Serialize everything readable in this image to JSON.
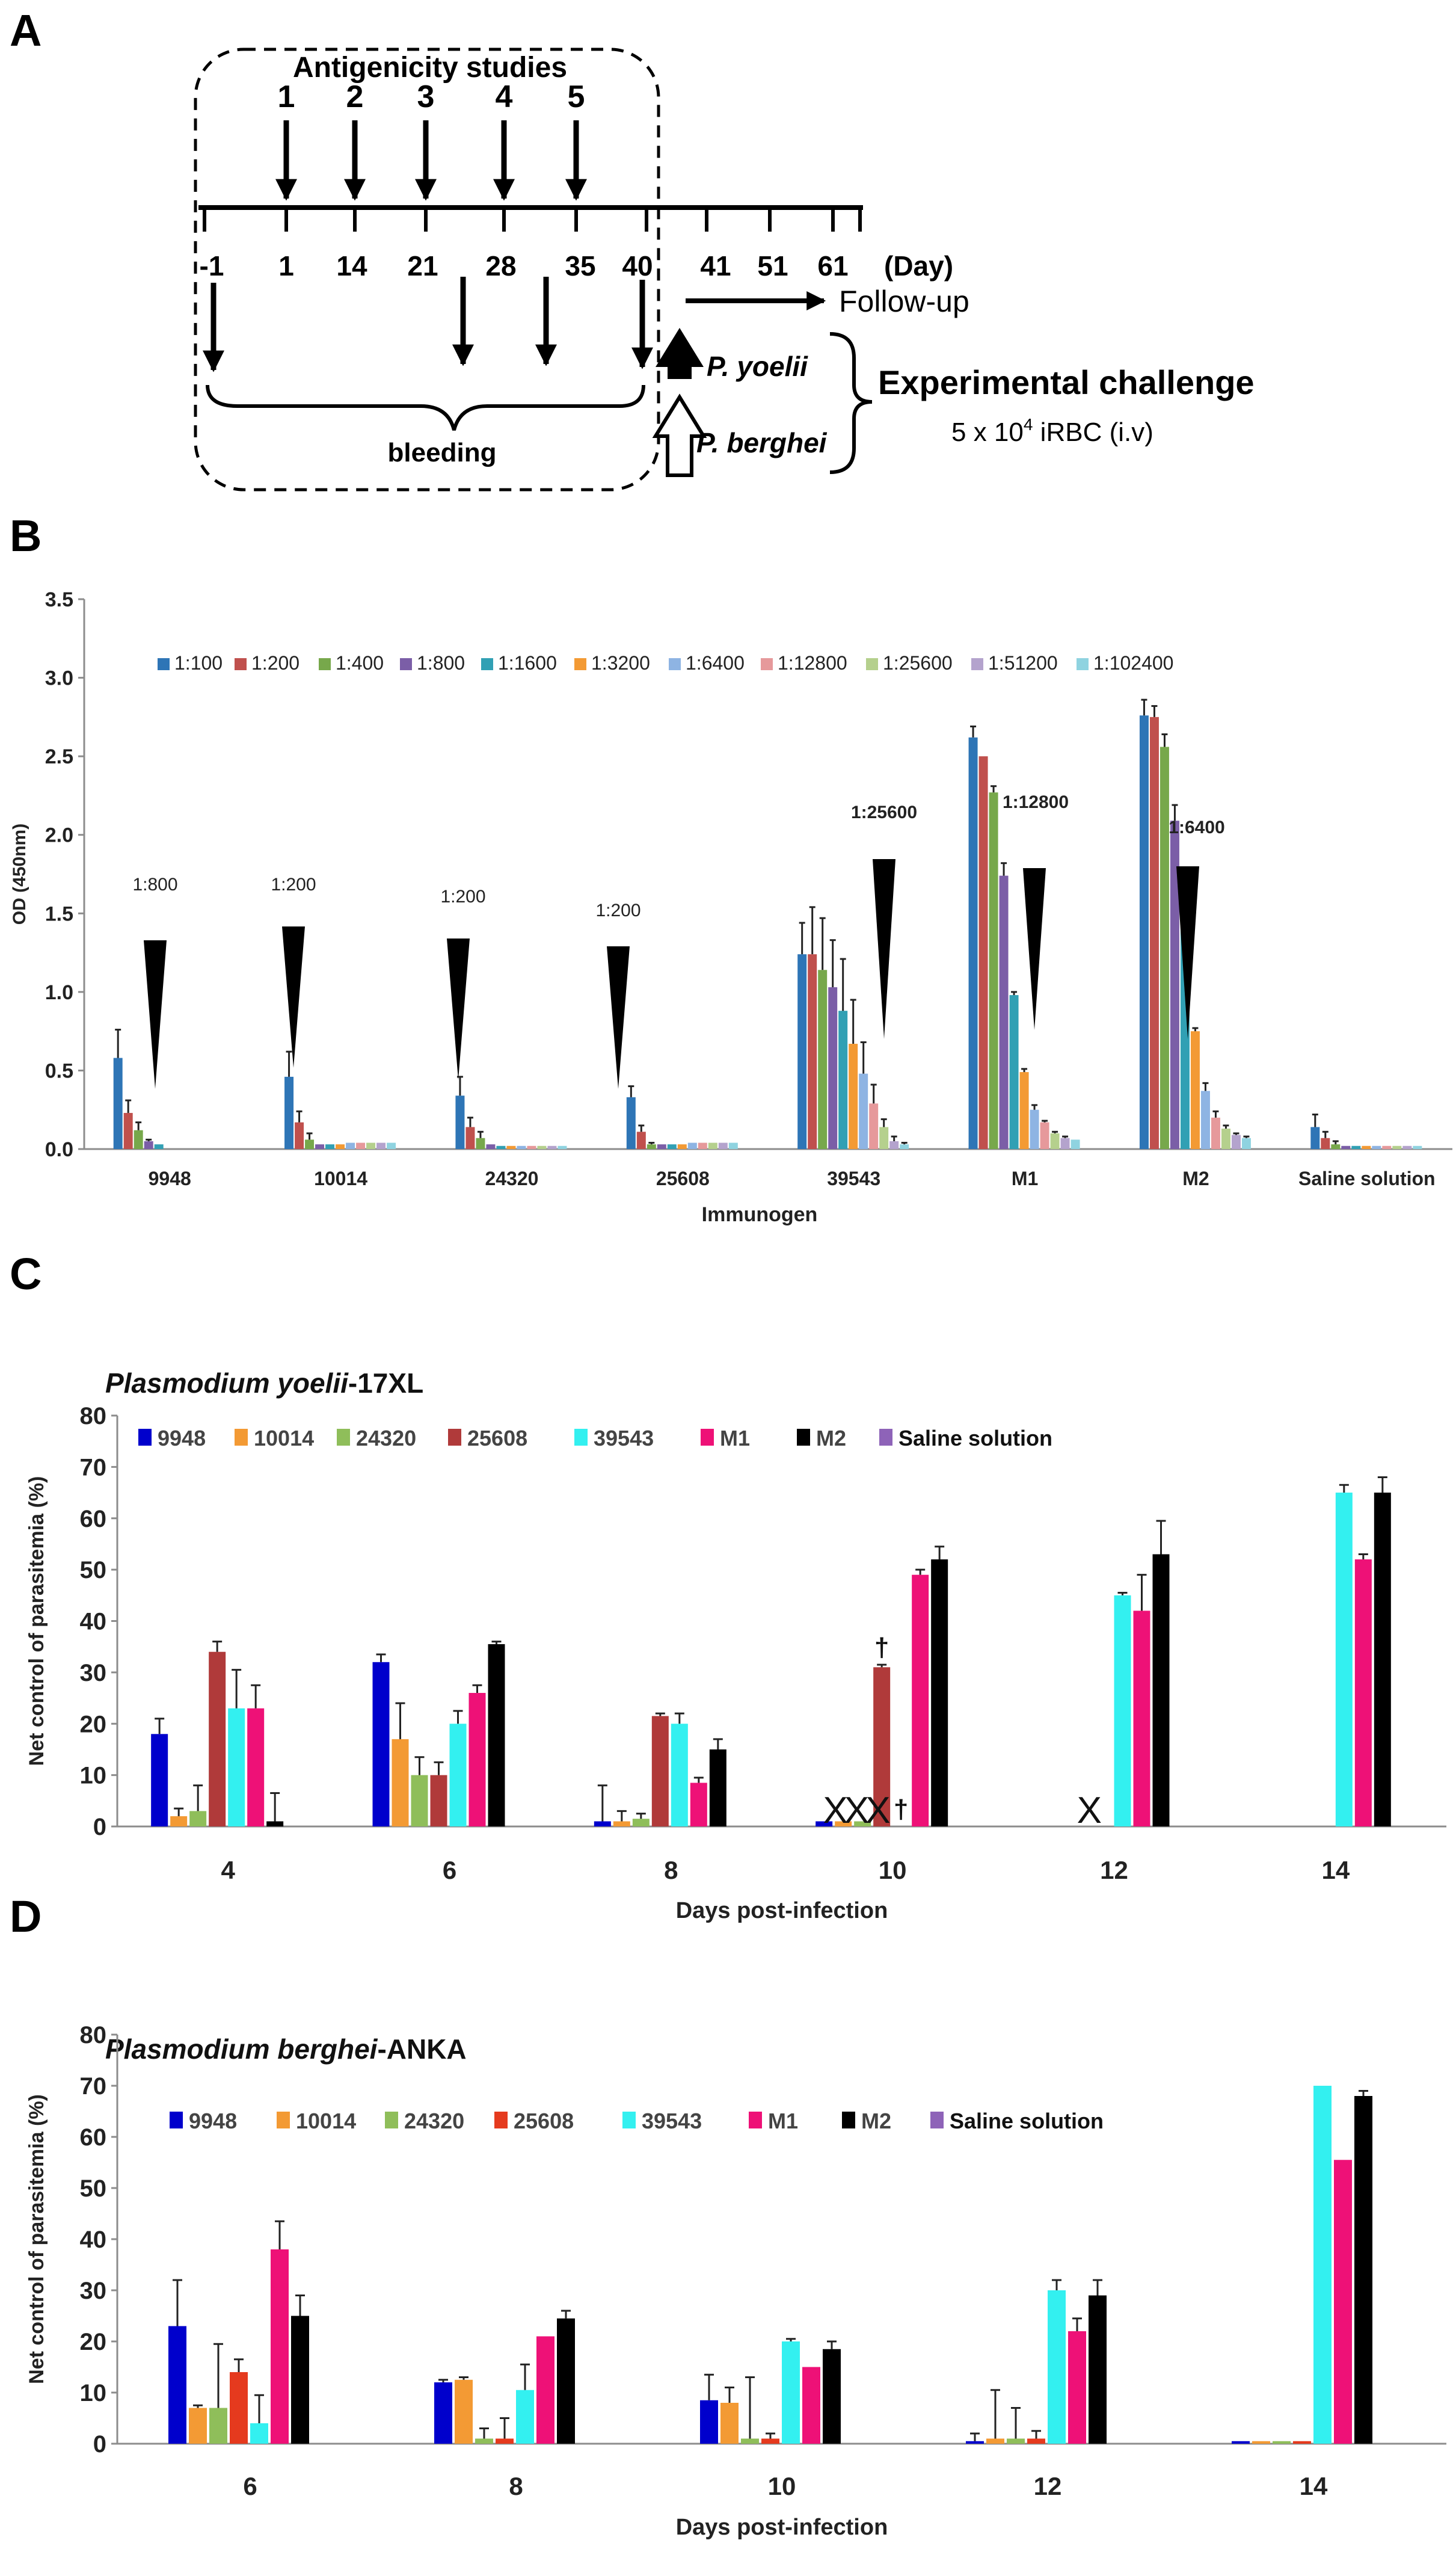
{
  "panel_labels": [
    "A",
    "B",
    "C",
    "D"
  ],
  "panelA": {
    "study_title": "Antigenicity studies",
    "doses": [
      "1",
      "2",
      "3",
      "4",
      "5"
    ],
    "days": [
      "-1",
      "1",
      "14",
      "21",
      "28",
      "35",
      "40",
      "41",
      "51",
      "61"
    ],
    "day_unit": "(Day)",
    "followup": "Follow-up",
    "bleeding": "bleeding",
    "species_1": "P. yoelii",
    "species_2": "P. berghei",
    "challenge_title": "Experimental challenge",
    "dose_prefix": "5 x 10",
    "dose_exp": "4",
    "dose_suffix": " iRBC (i.v)"
  },
  "chart_data": [
    {
      "type": "bar",
      "title": "",
      "xlabel": "Immunogen",
      "ylabel": "OD (450nm)",
      "ylim": [
        0,
        3.5
      ],
      "yticks": [
        "0.0",
        "0.5",
        "1.0",
        "1.5",
        "2.0",
        "2.5",
        "3.0",
        "3.5"
      ],
      "categories": [
        "9948",
        "10014",
        "24320",
        "25608",
        "39543",
        "M1",
        "M2",
        "Saline solution"
      ],
      "legend_position": "top",
      "series": [
        {
          "name": "1:100",
          "color": "#2e75b6",
          "values": [
            0.58,
            0.46,
            0.34,
            0.33,
            1.24,
            2.62,
            2.76,
            0.14
          ],
          "errors": [
            0.18,
            0.16,
            0.12,
            0.07,
            0.2,
            0.07,
            0.1,
            0.08
          ]
        },
        {
          "name": "1:200",
          "color": "#c0504d",
          "values": [
            0.23,
            0.17,
            0.14,
            0.11,
            1.24,
            2.5,
            2.75,
            0.07
          ],
          "errors": [
            0.08,
            0.07,
            0.06,
            0.04,
            0.3,
            0.0,
            0.07,
            0.04
          ]
        },
        {
          "name": "1:400",
          "color": "#77a84b",
          "values": [
            0.12,
            0.06,
            0.07,
            0.03,
            1.14,
            2.27,
            2.56,
            0.03
          ],
          "errors": [
            0.05,
            0.04,
            0.04,
            0.01,
            0.33,
            0.04,
            0.08,
            0.02
          ]
        },
        {
          "name": "1:800",
          "color": "#7b5ea7",
          "values": [
            0.05,
            0.03,
            0.03,
            0.03,
            1.03,
            1.74,
            2.09,
            0.02
          ],
          "errors": [
            0.01,
            0.0,
            0.0,
            0.0,
            0.3,
            0.08,
            0.1,
            0.0
          ]
        },
        {
          "name": "1:1600",
          "color": "#31a0b4",
          "values": [
            0.03,
            0.03,
            0.02,
            0.03,
            0.88,
            0.98,
            1.42,
            0.02
          ],
          "errors": [
            0.0,
            0.0,
            0.0,
            0.0,
            0.33,
            0.02,
            0.08,
            0.0
          ]
        },
        {
          "name": "1:3200",
          "color": "#f39a34",
          "values": [
            0.0,
            0.03,
            0.02,
            0.03,
            0.67,
            0.49,
            0.75,
            0.02
          ],
          "errors": [
            0.0,
            0.0,
            0.0,
            0.0,
            0.28,
            0.02,
            0.02,
            0.0
          ]
        },
        {
          "name": "1:6400",
          "color": "#8eb4e3",
          "values": [
            0.0,
            0.04,
            0.02,
            0.04,
            0.48,
            0.25,
            0.37,
            0.02
          ],
          "errors": [
            0.0,
            0.0,
            0.0,
            0.0,
            0.2,
            0.03,
            0.05,
            0.0
          ]
        },
        {
          "name": "1:12800",
          "color": "#e6999b",
          "values": [
            0.0,
            0.04,
            0.02,
            0.04,
            0.29,
            0.17,
            0.2,
            0.02
          ],
          "errors": [
            0.0,
            0.0,
            0.0,
            0.0,
            0.12,
            0.01,
            0.04,
            0.0
          ]
        },
        {
          "name": "1:25600",
          "color": "#b5d08d",
          "values": [
            0.0,
            0.04,
            0.02,
            0.04,
            0.14,
            0.1,
            0.13,
            0.02
          ],
          "errors": [
            0.0,
            0.0,
            0.0,
            0.0,
            0.05,
            0.01,
            0.02,
            0.0
          ]
        },
        {
          "name": "1:51200",
          "color": "#b4a3cd",
          "values": [
            0.0,
            0.04,
            0.02,
            0.04,
            0.05,
            0.07,
            0.09,
            0.02
          ],
          "errors": [
            0.0,
            0.0,
            0.0,
            0.0,
            0.03,
            0.01,
            0.01,
            0.0
          ]
        },
        {
          "name": "1:102400",
          "color": "#8fd3e0",
          "values": [
            0.0,
            0.04,
            0.02,
            0.04,
            0.03,
            0.06,
            0.07,
            0.02
          ],
          "errors": [
            0.0,
            0.0,
            0.0,
            0.0,
            0.01,
            0.0,
            0.01,
            0.0
          ]
        }
      ],
      "annotations": [
        {
          "label": "1:800",
          "category": "9948"
        },
        {
          "label": "1:200",
          "category": "10014"
        },
        {
          "label": "1:200",
          "category": "24320"
        },
        {
          "label": "1:200",
          "category": "25608"
        },
        {
          "label": "1:25600",
          "category": "39543"
        },
        {
          "label": "1:12800",
          "category": "M1"
        },
        {
          "label": "1:6400",
          "category": "M2"
        }
      ]
    },
    {
      "type": "bar",
      "title_italic": "Plasmodium  yoelii",
      "title_rest": "-17XL",
      "xlabel": "Days post-infection",
      "ylabel": "Net control of parasitemia (%)",
      "ylim": [
        0,
        80
      ],
      "yticks": [
        "0",
        "10",
        "20",
        "30",
        "40",
        "50",
        "60",
        "70",
        "80"
      ],
      "categories": [
        "4",
        "6",
        "8",
        "10",
        "12",
        "14"
      ],
      "legend_position": "top",
      "series": [
        {
          "name": "9948",
          "color": "#0000cc",
          "values": [
            18,
            32,
            1,
            1,
            null,
            null
          ],
          "errors": [
            3,
            1.5,
            7,
            0,
            null,
            null
          ]
        },
        {
          "name": "10014",
          "color": "#f39a34",
          "values": [
            2,
            17,
            1,
            1,
            null,
            null
          ],
          "errors": [
            1.5,
            7,
            2,
            0,
            null,
            null
          ]
        },
        {
          "name": "24320",
          "color": "#8fbe5a",
          "values": [
            3,
            10,
            1.5,
            1,
            null,
            null
          ],
          "errors": [
            5,
            3.5,
            1,
            0,
            null,
            null
          ]
        },
        {
          "name": "25608",
          "color": "#b03a3a",
          "values": [
            34,
            10,
            21.5,
            31,
            null,
            null
          ],
          "errors": [
            2,
            2.5,
            0.5,
            0.5,
            null,
            null
          ]
        },
        {
          "name": "39543",
          "color": "#33f0f0",
          "values": [
            23,
            20,
            20,
            null,
            45,
            65
          ],
          "errors": [
            7.5,
            2.5,
            2,
            null,
            0.5,
            1.5
          ]
        },
        {
          "name": "M1",
          "color": "#ee1177",
          "values": [
            23,
            26,
            8.5,
            49,
            42,
            52
          ],
          "errors": [
            4.5,
            1.5,
            1,
            1,
            7,
            1
          ]
        },
        {
          "name": "M2",
          "color": "#000000",
          "values": [
            1,
            35.5,
            15,
            52,
            53,
            65
          ],
          "errors": [
            5.5,
            0.5,
            2,
            2.5,
            6.5,
            3
          ]
        },
        {
          "name": "Saline solution",
          "color": "#8e63b8",
          "values": [
            0,
            0,
            0,
            0,
            0,
            0
          ],
          "errors": [
            0,
            0,
            0,
            0,
            0,
            0
          ]
        }
      ],
      "annotations": [
        {
          "label": "XXX",
          "category": "10"
        },
        {
          "label": "X",
          "category": "12"
        },
        {
          "label": "†",
          "category": "10",
          "series": "25608"
        },
        {
          "label": "†",
          "category": "10",
          "series": "39543"
        }
      ]
    },
    {
      "type": "bar",
      "title_italic": "Plasmodium  berghei",
      "title_rest": "-ANKA",
      "xlabel": "Days post-infection",
      "ylabel": "Net control of parasitemia (%)",
      "ylim": [
        0,
        80
      ],
      "yticks": [
        "0",
        "10",
        "20",
        "30",
        "40",
        "50",
        "60",
        "70",
        "80"
      ],
      "categories": [
        "6",
        "8",
        "10",
        "12",
        "14"
      ],
      "legend_position": "top",
      "series": [
        {
          "name": "9948",
          "color": "#0000cc",
          "values": [
            23,
            12,
            8.5,
            0.5,
            0.5
          ],
          "errors": [
            9,
            0.5,
            5,
            1.5,
            0
          ]
        },
        {
          "name": "10014",
          "color": "#f39a34",
          "values": [
            7,
            12.5,
            8,
            1,
            0.5
          ],
          "errors": [
            0.5,
            0.5,
            3,
            9.5,
            0
          ]
        },
        {
          "name": "24320",
          "color": "#8fbe5a",
          "values": [
            7,
            1,
            1,
            1,
            0.5
          ],
          "errors": [
            12.5,
            2,
            12,
            6,
            0
          ]
        },
        {
          "name": "25608",
          "color": "#e53a1e",
          "values": [
            14,
            1,
            1,
            1,
            0.5
          ],
          "errors": [
            2.5,
            4,
            1,
            1.5,
            0
          ]
        },
        {
          "name": "39543",
          "color": "#33f0f0",
          "values": [
            4,
            10.5,
            20,
            30,
            70
          ],
          "errors": [
            5.5,
            5,
            0.5,
            2,
            0
          ]
        },
        {
          "name": "M1",
          "color": "#ee1177",
          "values": [
            38,
            21,
            15,
            22,
            55.5
          ],
          "errors": [
            5.5,
            0,
            0,
            2.5,
            0
          ]
        },
        {
          "name": "M2",
          "color": "#000000",
          "values": [
            25,
            24.5,
            18.5,
            29,
            68
          ],
          "errors": [
            4,
            1.5,
            1.5,
            3,
            1
          ]
        },
        {
          "name": "Saline solution",
          "color": "#8e63b8",
          "values": [
            0,
            0,
            0,
            0,
            0
          ],
          "errors": [
            0,
            0,
            0,
            0,
            0
          ]
        }
      ]
    }
  ]
}
